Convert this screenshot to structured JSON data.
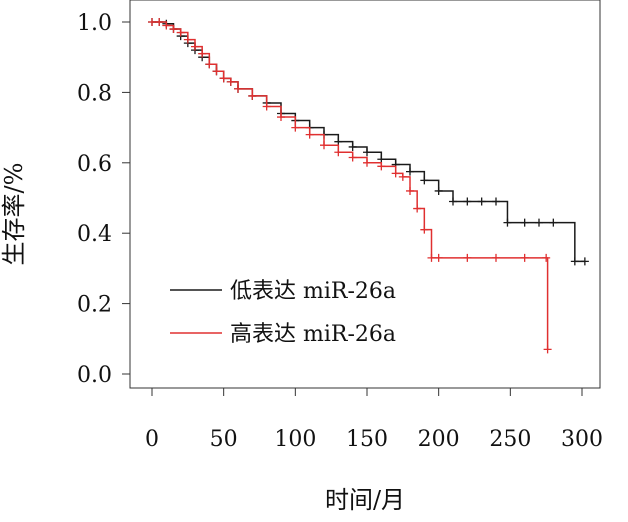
{
  "chart_data": {
    "type": "line",
    "subtype": "kaplan-meier",
    "xlabel": "时间/月",
    "ylabel": "生存率/%",
    "xlim": [
      0,
      305
    ],
    "ylim": [
      0.0,
      1.02
    ],
    "x_ticks": [
      0,
      50,
      100,
      150,
      200,
      250,
      300
    ],
    "y_ticks": [
      0.0,
      0.2,
      0.4,
      0.6,
      0.8,
      1.0
    ],
    "x_tick_labels": [
      "0",
      "50",
      "100",
      "150",
      "200",
      "250",
      "300"
    ],
    "y_tick_labels": [
      "0.0",
      "0.2",
      "0.4",
      "0.6",
      "0.8",
      "1.0"
    ],
    "legend": "left-bottom",
    "grid": false,
    "series": [
      {
        "name": "低表达 miR-26a",
        "color": "#1a1a1a",
        "x": [
          0,
          5,
          10,
          15,
          20,
          25,
          30,
          35,
          40,
          45,
          50,
          55,
          60,
          70,
          80,
          90,
          100,
          110,
          120,
          130,
          140,
          150,
          160,
          170,
          180,
          190,
          200,
          210,
          220,
          230,
          240,
          248,
          260,
          270,
          280,
          295,
          302
        ],
        "y": [
          1.0,
          1.0,
          0.995,
          0.98,
          0.96,
          0.94,
          0.92,
          0.9,
          0.88,
          0.86,
          0.84,
          0.83,
          0.81,
          0.79,
          0.77,
          0.74,
          0.72,
          0.7,
          0.68,
          0.66,
          0.645,
          0.63,
          0.61,
          0.595,
          0.575,
          0.55,
          0.52,
          0.49,
          0.49,
          0.49,
          0.49,
          0.43,
          0.43,
          0.43,
          0.43,
          0.32,
          0.32
        ]
      },
      {
        "name": "高表达 miR-26a",
        "color": "#e03030",
        "x": [
          0,
          5,
          10,
          15,
          20,
          25,
          30,
          35,
          40,
          45,
          50,
          55,
          60,
          70,
          80,
          90,
          100,
          110,
          120,
          130,
          140,
          150,
          160,
          170,
          175,
          180,
          185,
          190,
          195,
          200,
          220,
          240,
          260,
          275,
          276
        ],
        "y": [
          1.0,
          1.0,
          0.99,
          0.98,
          0.97,
          0.95,
          0.93,
          0.91,
          0.88,
          0.86,
          0.84,
          0.83,
          0.81,
          0.79,
          0.76,
          0.73,
          0.7,
          0.68,
          0.65,
          0.63,
          0.615,
          0.6,
          0.59,
          0.57,
          0.56,
          0.52,
          0.47,
          0.41,
          0.33,
          0.33,
          0.33,
          0.33,
          0.33,
          0.33,
          0.07
        ]
      }
    ]
  }
}
